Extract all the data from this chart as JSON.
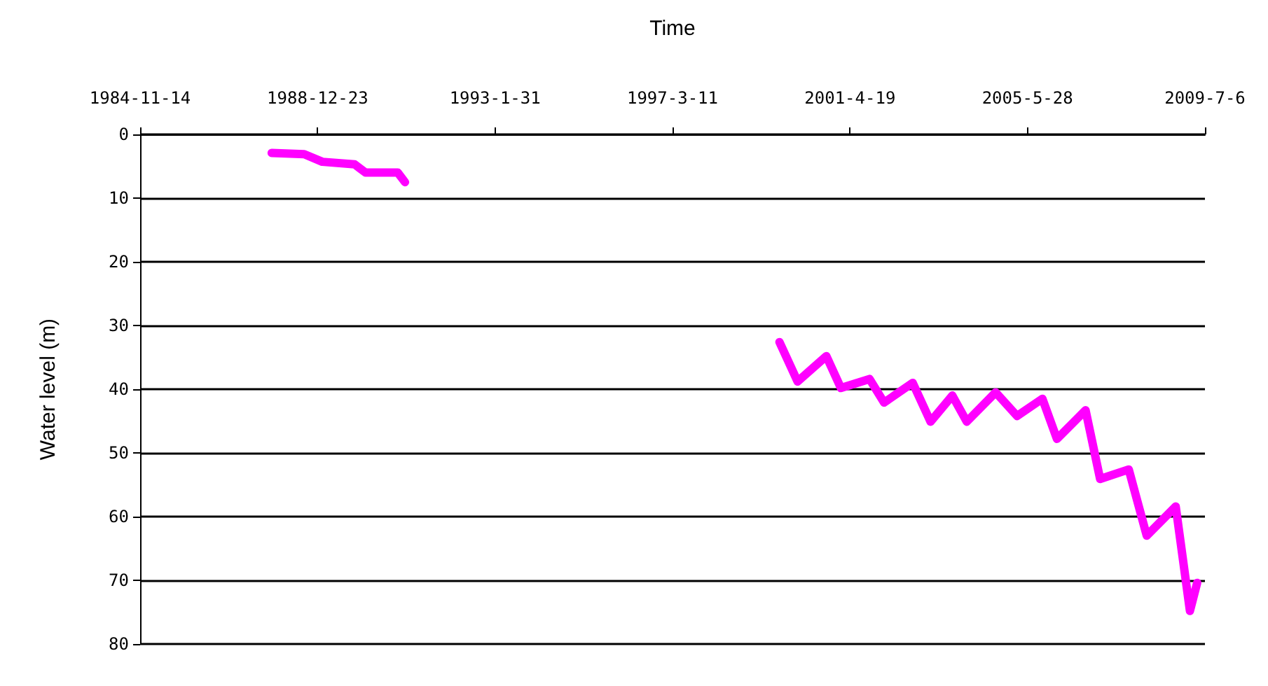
{
  "chart_data": {
    "type": "line",
    "xlabel": "Time",
    "ylabel": "Water level (m)",
    "x": [
      "1987-12",
      "1988-09",
      "1989-02",
      "1989-11",
      "1990-02",
      "1990-11",
      "1991-01",
      "1995-01",
      "1999-09",
      "2000-02",
      "2000-10",
      "2001-02",
      "2001-10",
      "2002-02",
      "2002-10",
      "2003-03",
      "2003-09",
      "2004-01",
      "2004-09",
      "2005-03",
      "2005-10",
      "2006-02",
      "2006-10",
      "2007-02",
      "2007-10",
      "2008-03",
      "2008-11",
      "2009-03",
      "2009-05"
    ],
    "series": [
      {
        "color": "#ff00ff",
        "values": [
          2.9,
          3.1,
          4.3,
          4.7,
          6,
          6,
          7.5,
          null,
          32.6,
          38.8,
          34.8,
          39.8,
          38.4,
          42.1,
          39,
          45.1,
          41,
          45.1,
          40.5,
          44.2,
          41.5,
          47.8,
          43.3,
          54.1,
          52.6,
          63,
          58.4,
          74.8,
          70.4
        ]
      }
    ],
    "xlim": [
      "1984-11-14",
      "2009-07-06"
    ],
    "xticks": [
      {
        "value": "1984-11-14",
        "label": "1984-11-14"
      },
      {
        "value": "1988-12-23",
        "label": "1988-12-23"
      },
      {
        "value": "1993-01-31",
        "label": "1993-1-31"
      },
      {
        "value": "1997-03-11",
        "label": "1997-3-11"
      },
      {
        "value": "2001-04-19",
        "label": "2001-4-19"
      },
      {
        "value": "2005-05-28",
        "label": "2005-5-28"
      },
      {
        "value": "2009-07-06",
        "label": "2009-7-6"
      }
    ],
    "ylim": [
      80,
      0
    ],
    "yticks": [
      0,
      10,
      20,
      30,
      40,
      50,
      60,
      70,
      80
    ],
    "grid": "y"
  }
}
